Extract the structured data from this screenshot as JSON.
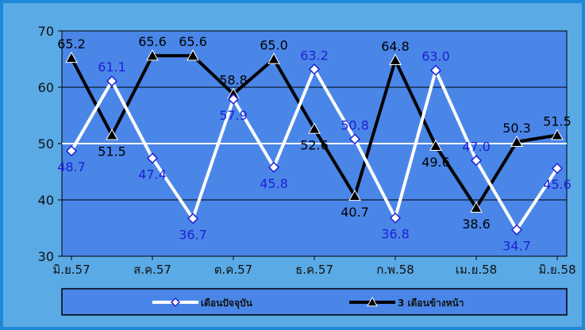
{
  "chart_data": {
    "type": "line",
    "ylim": [
      30,
      70
    ],
    "yticks": [
      30,
      40,
      50,
      60,
      70
    ],
    "x_tick_labels": [
      "มิ.ย.57",
      "ส.ค.57",
      "ต.ค.57",
      "ธ.ค.57",
      "ก.พ.58",
      "เม.ย.58",
      "มิ.ย.58"
    ],
    "reference_line": 50,
    "grid": true,
    "legend_position": "bottom",
    "series": [
      {
        "name": "เดือนปัจจุบัน",
        "color": "#ffffff",
        "label_color": "#1f1fd6",
        "marker": "diamond",
        "values": [
          48.7,
          61.1,
          47.4,
          36.7,
          57.9,
          45.8,
          63.2,
          50.8,
          36.8,
          63.0,
          47.0,
          34.7,
          45.6
        ]
      },
      {
        "name": "3 เดือนข้างหน้า",
        "color": "#000000",
        "label_color": "#000000",
        "marker": "triangle",
        "values": [
          65.2,
          51.5,
          65.6,
          65.6,
          58.8,
          65.0,
          52.6,
          40.7,
          64.8,
          49.6,
          38.6,
          50.3,
          51.5
        ]
      }
    ]
  }
}
